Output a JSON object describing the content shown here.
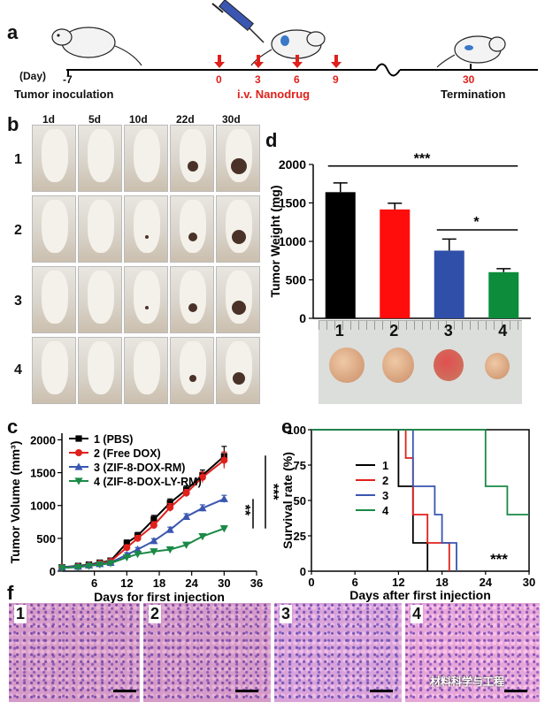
{
  "panel_labels": {
    "a": "a",
    "b": "b",
    "c": "c",
    "d": "d",
    "e": "e",
    "f": "f"
  },
  "timeline": {
    "day_label": "(Day)",
    "start_day": "-7",
    "start_caption": "Tumor inoculation",
    "injection_days": [
      "0",
      "3",
      "6",
      "9"
    ],
    "injection_caption": "i.v. Nanodrug",
    "end_day": "30",
    "end_caption": "Termination",
    "colors": {
      "axis": "#000000",
      "injection": "#e0201b"
    }
  },
  "photo_grid": {
    "columns": [
      "1d",
      "5d",
      "10d",
      "22d",
      "30d"
    ],
    "rows": [
      "1",
      "2",
      "3",
      "4"
    ]
  },
  "chart_d": {
    "type": "bar",
    "ylabel": "Tumor Weight (mg)",
    "yticks": [
      "0",
      "500",
      "1000",
      "1500",
      "2000"
    ],
    "ylim": [
      0,
      2000
    ],
    "categories": [
      "1",
      "2",
      "3",
      "4"
    ],
    "values": [
      1640,
      1415,
      880,
      600
    ],
    "errors": [
      120,
      80,
      150,
      45
    ],
    "colors": [
      "#000000",
      "#ff0d0d",
      "#2f4fa8",
      "#0d8c3c"
    ],
    "sig_all": "***",
    "sig_34": "*"
  },
  "chart_c": {
    "type": "line",
    "ylabel": "Tumor Volume (mm³)",
    "xlabel": "Days for first injection",
    "xticks": [
      "6",
      "12",
      "18",
      "24",
      "30",
      "36"
    ],
    "yticks": [
      "0",
      "500",
      "1000",
      "1500",
      "2000"
    ],
    "xlim": [
      0,
      36
    ],
    "ylim": [
      0,
      2100
    ],
    "x": [
      0,
      3,
      5,
      7,
      9,
      12,
      14,
      17,
      20,
      23,
      26,
      30
    ],
    "series": [
      {
        "name": "1 (PBS)",
        "color": "#000000",
        "marker": "square",
        "values": [
          60,
          80,
          100,
          130,
          160,
          430,
          540,
          790,
          1040,
          1240,
          1460,
          1750
        ],
        "error": [
          30,
          30,
          30,
          40,
          40,
          90,
          100,
          120,
          120,
          120,
          160,
          300
        ]
      },
      {
        "name": "2 (Free DOX)",
        "color": "#e0201b",
        "marker": "circle",
        "values": [
          60,
          70,
          90,
          120,
          150,
          360,
          500,
          700,
          970,
          1190,
          1430,
          1690
        ],
        "error": [
          30,
          30,
          30,
          40,
          40,
          80,
          90,
          110,
          120,
          110,
          160,
          250
        ]
      },
      {
        "name": "3 (ZIF-8-DOX-RM)",
        "color": "#3a56b0",
        "marker": "triangle",
        "values": [
          60,
          70,
          90,
          110,
          130,
          250,
          330,
          460,
          630,
          830,
          960,
          1100
        ],
        "error": [
          30,
          30,
          30,
          30,
          40,
          60,
          60,
          70,
          80,
          90,
          100,
          110
        ]
      },
      {
        "name": "4 (ZIF-8-DOX-LY-RM)",
        "color": "#1a8a46",
        "marker": "triangle-down",
        "values": [
          50,
          60,
          80,
          100,
          120,
          210,
          260,
          300,
          330,
          400,
          530,
          650
        ],
        "error": [
          20,
          20,
          30,
          30,
          30,
          60,
          70,
          70,
          60,
          60,
          70,
          80
        ]
      }
    ],
    "legend": [
      "1 (PBS)",
      "2 (Free DOX)",
      "3 (ZIF-8-DOX-RM)",
      "4 (ZIF-8-DOX-LY-RM)"
    ],
    "sig_outer": "***",
    "sig_inner": "**"
  },
  "chart_e": {
    "type": "line",
    "ylabel": "Survival rate (%)",
    "xlabel": "Days after first injection",
    "xticks": [
      "0",
      "6",
      "12",
      "18",
      "24",
      "30"
    ],
    "yticks": [
      "0",
      "25",
      "50",
      "75",
      "100"
    ],
    "xlim": [
      0,
      30
    ],
    "ylim": [
      0,
      100
    ],
    "series": [
      {
        "name": "1",
        "color": "#000000",
        "steps": [
          [
            0,
            100
          ],
          [
            12,
            100
          ],
          [
            12,
            60
          ],
          [
            14,
            60
          ],
          [
            14,
            20
          ],
          [
            16,
            20
          ],
          [
            16,
            0
          ]
        ]
      },
      {
        "name": "2",
        "color": "#e0201b",
        "steps": [
          [
            0,
            100
          ],
          [
            13,
            100
          ],
          [
            13,
            80
          ],
          [
            14,
            80
          ],
          [
            14,
            40
          ],
          [
            16,
            40
          ],
          [
            16,
            20
          ],
          [
            19,
            20
          ],
          [
            19,
            0
          ]
        ]
      },
      {
        "name": "3",
        "color": "#3a56b0",
        "steps": [
          [
            0,
            100
          ],
          [
            14,
            100
          ],
          [
            14,
            60
          ],
          [
            17,
            60
          ],
          [
            17,
            40
          ],
          [
            18,
            40
          ],
          [
            18,
            20
          ],
          [
            20,
            20
          ],
          [
            20,
            0
          ]
        ]
      },
      {
        "name": "4",
        "color": "#1a8a46",
        "steps": [
          [
            0,
            100
          ],
          [
            24,
            100
          ],
          [
            24,
            60
          ],
          [
            27,
            60
          ],
          [
            27,
            40
          ],
          [
            30,
            40
          ]
        ]
      }
    ],
    "legend": [
      "1",
      "2",
      "3",
      "4"
    ],
    "sig": "***"
  },
  "histology": {
    "labels": [
      "1",
      "2",
      "3",
      "4"
    ],
    "watermark": "材料科学与工程"
  }
}
